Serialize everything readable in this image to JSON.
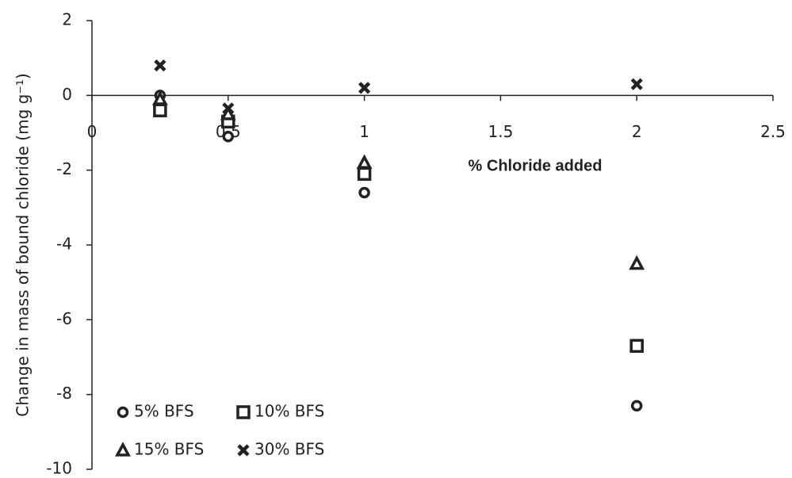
{
  "chart_data": {
    "type": "scatter",
    "x_label": "% Chloride added",
    "y_label": "Change in mass of bound chloride (mg g⁻¹)",
    "x": [
      0.25,
      0.5,
      1,
      2
    ],
    "series": [
      {
        "name": "5% BFS",
        "color": "#222222",
        "marker": "circle",
        "values": [
          0,
          -1.1,
          -2.6,
          -8.3
        ]
      },
      {
        "name": "10% BFS",
        "color": "#222222",
        "marker": "square",
        "values": [
          -0.4,
          -0.7,
          -2.1,
          -6.7
        ]
      },
      {
        "name": "15% BFS",
        "color": "#222222",
        "marker": "triangle",
        "values": [
          -0.1,
          -0.5,
          -1.8,
          -4.5
        ]
      },
      {
        "name": "30% BFS",
        "color": "#222222",
        "marker": "cross",
        "values": [
          0.8,
          -0.35,
          0.2,
          0.3
        ]
      }
    ],
    "xlim": [
      0,
      2.5
    ],
    "xticks": [
      0,
      0.5,
      1,
      1.5,
      2,
      2.5
    ],
    "ylim": [
      -10,
      2
    ],
    "yticks": [
      -10,
      -8,
      -6,
      -4,
      -2,
      0,
      2
    ]
  }
}
